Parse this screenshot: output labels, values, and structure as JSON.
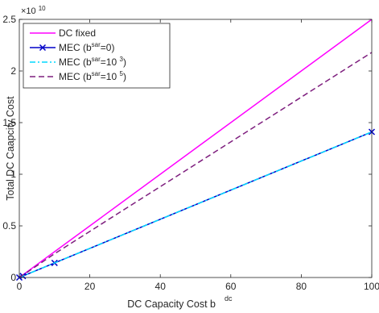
{
  "chart_data": {
    "type": "line",
    "xlabel": "DC Capacity Cost b",
    "xlabel_superscript": "dc",
    "ylabel": "Total DC Caapcity Cost",
    "exponent_base": "×10",
    "exponent_power": "10",
    "xlim": [
      0,
      100
    ],
    "ylim": [
      0,
      25000000000
    ],
    "xticks": [
      0,
      20,
      40,
      60,
      80,
      100
    ],
    "xtick_labels": [
      "0",
      "20",
      "40",
      "60",
      "80",
      "100"
    ],
    "yticks": [
      0,
      5000000000,
      10000000000,
      15000000000,
      20000000000,
      25000000000
    ],
    "ytick_labels": [
      "0",
      "0.5",
      "1",
      "1.5",
      "2",
      "2.5"
    ],
    "grid": false,
    "legend_position": "top-left",
    "series": [
      {
        "name": "DC fixed",
        "legend_parts": [
          "DC fixed"
        ],
        "color": "#ff00ff",
        "style": "solid",
        "marker": "none",
        "x": [
          0,
          1,
          10,
          100
        ],
        "y": [
          0,
          250000000,
          2500000000,
          25000000000
        ]
      },
      {
        "name": "MEC (b^sar=0)",
        "legend_parts": [
          "MEC (b",
          "sar",
          "=0)"
        ],
        "color": "#0000c8",
        "style": "solid",
        "marker": "x",
        "x": [
          0,
          1,
          10,
          100
        ],
        "y": [
          0,
          141000000,
          1410000000,
          14100000000
        ]
      },
      {
        "name": "MEC (b^sar=10^3)",
        "legend_parts": [
          "MEC (b",
          "sar",
          "=10 ",
          "3",
          ")"
        ],
        "color": "#00d8ff",
        "style": "dashdot",
        "marker": "none",
        "x": [
          0,
          1,
          10,
          100
        ],
        "y": [
          0,
          141000000,
          1410000000,
          14100000000
        ]
      },
      {
        "name": "MEC (b^sar=10^5)",
        "legend_parts": [
          "MEC (b",
          "sar",
          "=10 ",
          "5",
          ")"
        ],
        "color": "#7e1e7e",
        "style": "dashed",
        "marker": "none",
        "x": [
          0,
          1,
          10,
          100
        ],
        "y": [
          0,
          230000000,
          2300000000,
          21800000000
        ]
      }
    ]
  }
}
